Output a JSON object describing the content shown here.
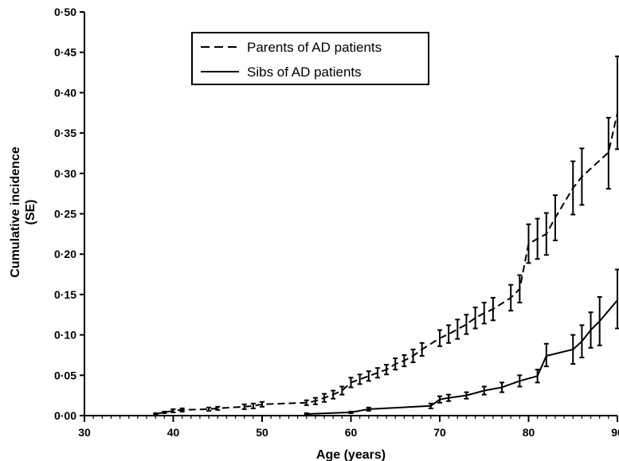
{
  "chart_data": {
    "type": "line",
    "title": "",
    "xlabel": "Age (years)",
    "ylabel": "Cumulative incidence (SE)",
    "ylabel_lines": [
      "Cumulative incidence",
      "(SE)"
    ],
    "xlim": [
      30,
      90
    ],
    "ylim": [
      0,
      0.5
    ],
    "x_ticks": [
      30,
      40,
      50,
      60,
      70,
      80,
      90
    ],
    "x_tick_labels": [
      "30",
      "40",
      "50",
      "60",
      "70",
      "80",
      "90"
    ],
    "y_ticks": [
      0,
      0.05,
      0.1,
      0.15,
      0.2,
      0.25,
      0.3,
      0.35,
      0.4,
      0.45,
      0.5
    ],
    "y_tick_labels": [
      "0·00",
      "0·05",
      "0·10",
      "0·15",
      "0·20",
      "0·25",
      "0·30",
      "0·35",
      "0·40",
      "0·45",
      "0·50"
    ],
    "grid": false,
    "legend_position": "top-left",
    "series": [
      {
        "name": "Parents of AD patients",
        "line_style": "dashed",
        "x": [
          38,
          39,
          40,
          41,
          44,
          45,
          48,
          49,
          50,
          55,
          56,
          57,
          58,
          59,
          60,
          61,
          62,
          63,
          64,
          65,
          66,
          67,
          68,
          70,
          71,
          72,
          73,
          74,
          75,
          76,
          78,
          79,
          80,
          81,
          82,
          83,
          85,
          86,
          89,
          90
        ],
        "y": [
          0.002,
          0.004,
          0.006,
          0.007,
          0.008,
          0.009,
          0.011,
          0.012,
          0.014,
          0.016,
          0.018,
          0.022,
          0.026,
          0.031,
          0.041,
          0.045,
          0.049,
          0.053,
          0.057,
          0.064,
          0.068,
          0.074,
          0.082,
          0.096,
          0.101,
          0.107,
          0.113,
          0.121,
          0.127,
          0.132,
          0.146,
          0.157,
          0.213,
          0.219,
          0.225,
          0.245,
          0.282,
          0.296,
          0.326,
          0.375
        ],
        "err_lo": [
          0.001,
          0.001,
          0.002,
          0.002,
          0.002,
          0.002,
          0.003,
          0.003,
          0.003,
          0.003,
          0.004,
          0.005,
          0.005,
          0.005,
          0.006,
          0.006,
          0.006,
          0.006,
          0.006,
          0.007,
          0.007,
          0.008,
          0.008,
          0.01,
          0.011,
          0.012,
          0.012,
          0.013,
          0.013,
          0.014,
          0.016,
          0.017,
          0.024,
          0.025,
          0.026,
          0.028,
          0.033,
          0.035,
          0.045,
          0.045
        ],
        "err_hi": [
          0.001,
          0.001,
          0.002,
          0.002,
          0.002,
          0.002,
          0.003,
          0.003,
          0.003,
          0.003,
          0.004,
          0.005,
          0.005,
          0.005,
          0.006,
          0.006,
          0.006,
          0.006,
          0.006,
          0.007,
          0.007,
          0.008,
          0.008,
          0.01,
          0.011,
          0.012,
          0.012,
          0.013,
          0.013,
          0.014,
          0.016,
          0.017,
          0.024,
          0.025,
          0.026,
          0.028,
          0.033,
          0.035,
          0.043,
          0.07
        ]
      },
      {
        "name": "Sibs of AD patients",
        "line_style": "solid",
        "x": [
          55,
          60,
          62,
          69,
          70,
          71,
          73,
          75,
          77,
          79,
          81,
          82,
          85,
          86,
          87,
          88,
          90
        ],
        "y": [
          0.002,
          0.004,
          0.008,
          0.012,
          0.02,
          0.022,
          0.025,
          0.031,
          0.035,
          0.043,
          0.049,
          0.074,
          0.082,
          0.092,
          0.106,
          0.117,
          0.143
        ],
        "err_lo": [
          0.001,
          0.001,
          0.002,
          0.003,
          0.004,
          0.004,
          0.004,
          0.005,
          0.006,
          0.007,
          0.008,
          0.013,
          0.018,
          0.02,
          0.022,
          0.03,
          0.035
        ],
        "err_hi": [
          0.001,
          0.001,
          0.002,
          0.003,
          0.004,
          0.004,
          0.004,
          0.005,
          0.006,
          0.007,
          0.008,
          0.015,
          0.018,
          0.02,
          0.022,
          0.03,
          0.038
        ]
      }
    ]
  }
}
